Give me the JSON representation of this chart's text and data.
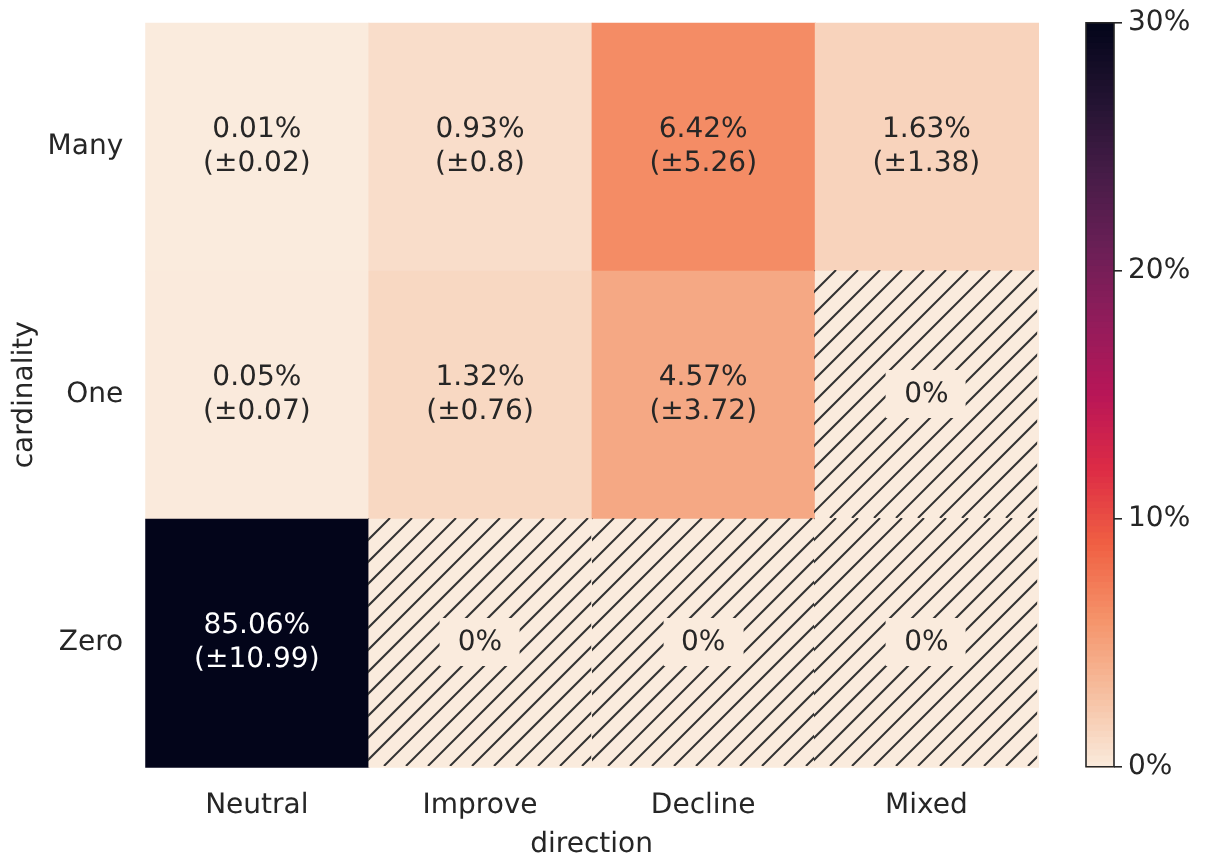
{
  "chart_data": {
    "type": "heatmap",
    "xlabel": "direction",
    "ylabel": "cardinality",
    "categories": [
      "Neutral",
      "Improve",
      "Decline",
      "Mixed"
    ],
    "y_categories": [
      "Many",
      "One",
      "Zero"
    ],
    "cells": [
      [
        0.01,
        0.93,
        6.42,
        1.63
      ],
      [
        0.05,
        1.32,
        4.57,
        0
      ],
      [
        85.06,
        0,
        0,
        0
      ]
    ],
    "cell_labels": [
      [
        "0.01%\n(±0.02)",
        "0.93%\n(±0.8)",
        "6.42%\n(±5.26)",
        "1.63%\n(±1.38)"
      ],
      [
        "0.05%\n(±0.07)",
        "1.32%\n(±0.76)",
        "4.57%\n(±3.72)",
        "0%"
      ],
      [
        "85.06%\n(±10.99)",
        "0%",
        "0%",
        "0%"
      ]
    ],
    "clim": [
      0,
      30
    ],
    "cticks": [
      {
        "value": 0,
        "label": "0%"
      },
      {
        "value": 10,
        "label": "10%"
      },
      {
        "value": 20,
        "label": "20%"
      },
      {
        "value": 30,
        "label": "30%"
      }
    ]
  }
}
